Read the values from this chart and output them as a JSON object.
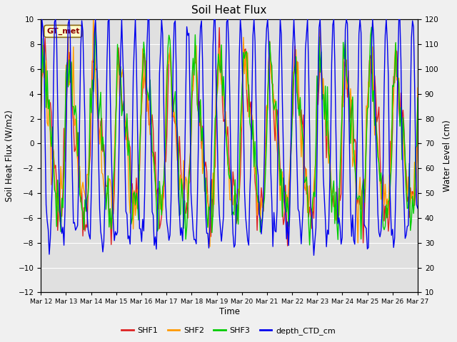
{
  "title": "Soil Heat Flux",
  "xlabel": "Time",
  "ylabel_left": "Soil Heat Flux (W/m2)",
  "ylabel_right": "Water Level (cm)",
  "ylim_left": [
    -12,
    10
  ],
  "ylim_right": [
    10,
    120
  ],
  "tick_labels": [
    "Mar 12",
    "Mar 13",
    "Mar 14",
    "Mar 15",
    "Mar 16",
    "Mar 17",
    "Mar 18",
    "Mar 19",
    "Mar 20",
    "Mar 21",
    "Mar 22",
    "Mar 23",
    "Mar 24",
    "Mar 25",
    "Mar 26",
    "Mar 27"
  ],
  "yticks_left": [
    -12,
    -10,
    -8,
    -6,
    -4,
    -2,
    0,
    2,
    4,
    6,
    8,
    10
  ],
  "yticks_right": [
    10,
    20,
    30,
    40,
    50,
    60,
    70,
    80,
    90,
    100,
    110,
    120
  ],
  "colors": {
    "SHF1": "#dd2222",
    "SHF2": "#ff9900",
    "SHF3": "#00cc00",
    "depth_CTD_cm": "#0000ee"
  },
  "legend_label_box": "GT_met",
  "fig_bg_color": "#f0f0f0",
  "plot_bg_color": "#e0e0e0",
  "grid_color": "#ffffff",
  "linewidth": 1.0
}
